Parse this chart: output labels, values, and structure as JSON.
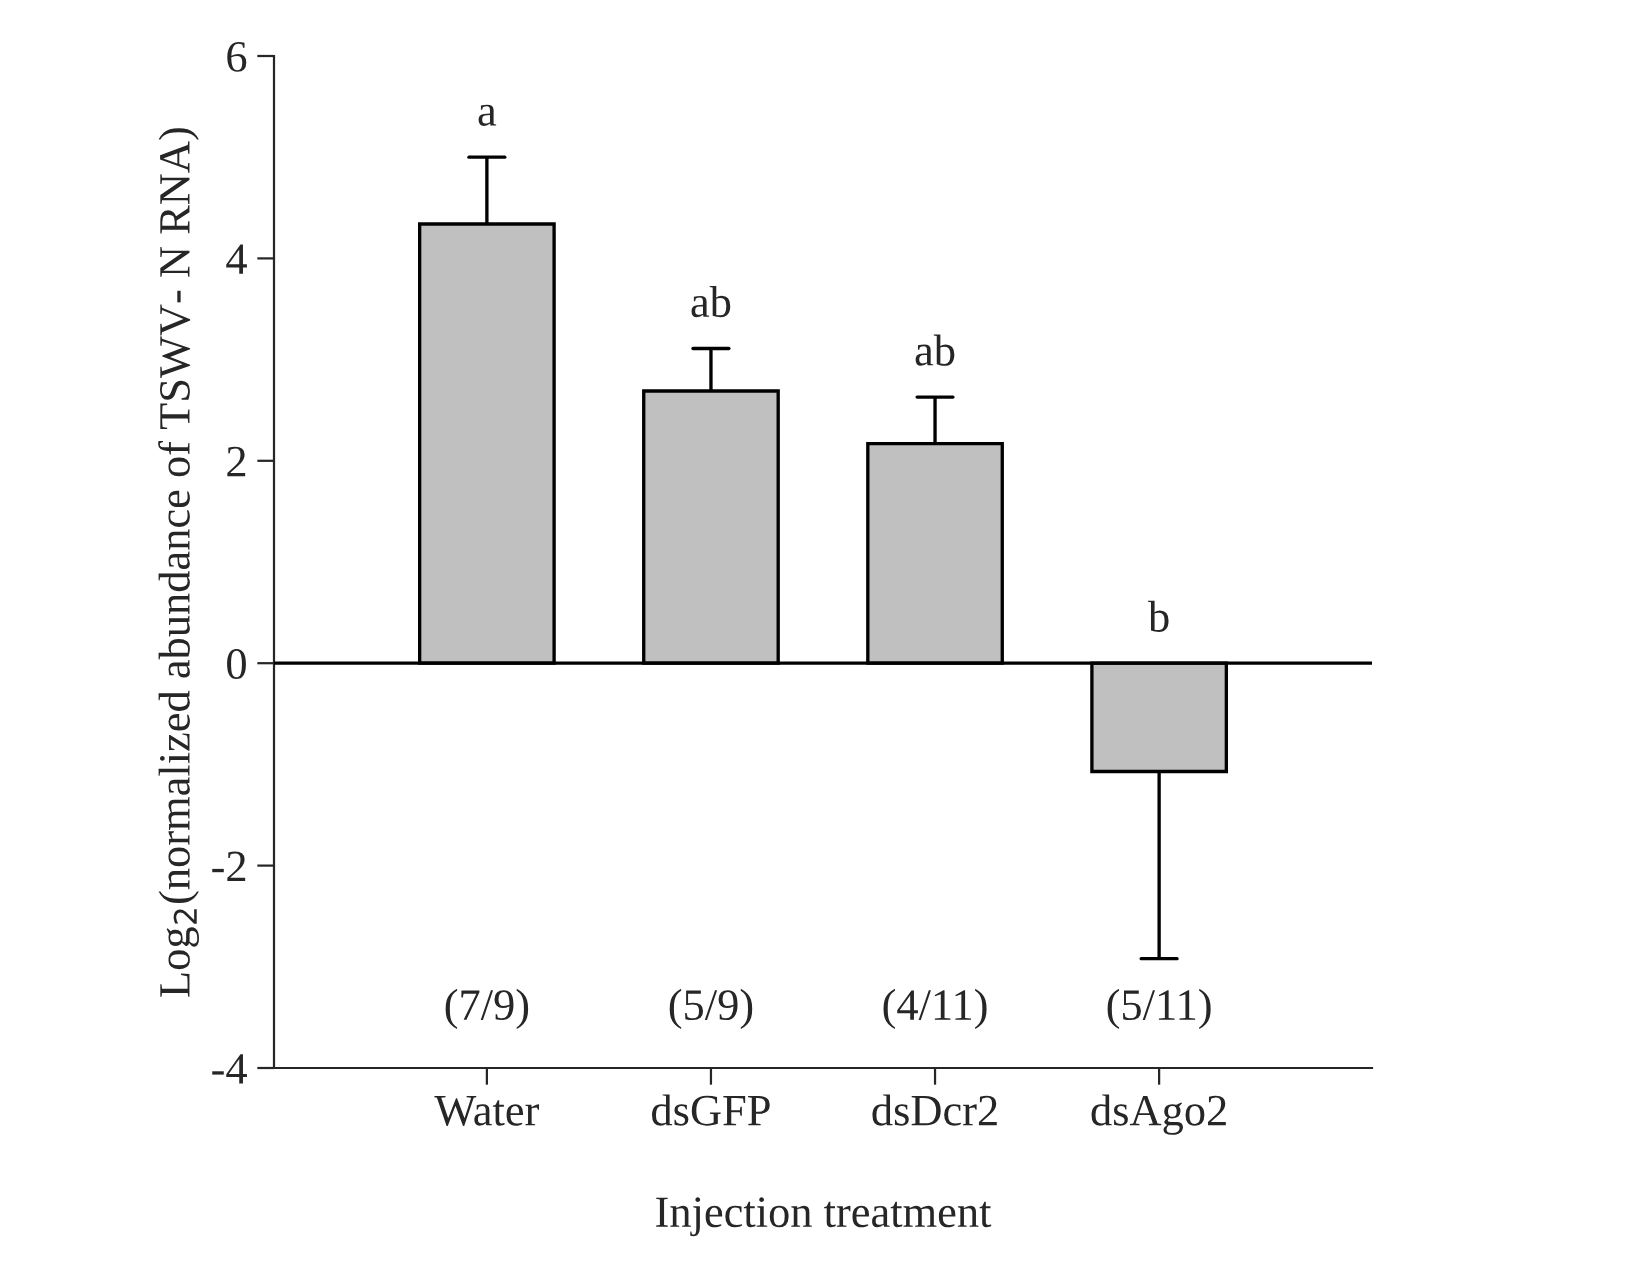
{
  "chart_data": {
    "type": "bar",
    "xlabel": "Injection treatment",
    "ylabel": "Log$_{2}$(normalized abundance of TSWV- N RNA)",
    "categories": [
      "Water",
      "dsGFP",
      "dsDcr2",
      "dsAgo2"
    ],
    "values": [
      4.34,
      2.69,
      2.17,
      -1.07
    ],
    "errors": [
      [
        4.34,
        5.0
      ],
      [
        2.69,
        3.11
      ],
      [
        2.17,
        2.63
      ],
      [
        -2.92,
        -1.07
      ]
    ],
    "color": "#c0c0c0",
    "ylim": [
      -4,
      6
    ],
    "yticks": [
      -4,
      -2,
      0,
      2,
      4,
      6
    ],
    "ref_lines": [
      {
        "axis": "y",
        "value": 0,
        "color": "#000000"
      }
    ],
    "grid": false,
    "annotations": [
      "a",
      "ab",
      "ab",
      "b",
      "(7/9)",
      "(5/9)",
      "(4/11)",
      "(5/11)"
    ]
  }
}
